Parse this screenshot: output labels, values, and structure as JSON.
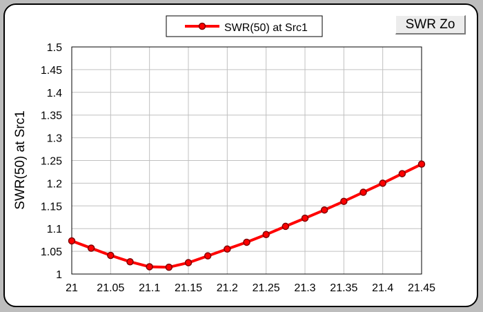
{
  "button": {
    "label": "SWR Zo"
  },
  "colors": {
    "line": "#ff0000",
    "marker_fill": "#ff0000",
    "marker_edge": "#800000",
    "grid": "#c0c0c0"
  },
  "chart_data": {
    "type": "line",
    "title": "",
    "xlabel": "",
    "ylabel": "SWR(50) at Src1",
    "xlim": [
      21,
      21.45
    ],
    "ylim": [
      1,
      1.5
    ],
    "grid": true,
    "legend": "top-center",
    "x_ticks": [
      "21",
      "21.05",
      "21.1",
      "21.15",
      "21.2",
      "21.25",
      "21.3",
      "21.35",
      "21.4",
      "21.45"
    ],
    "y_ticks": [
      "1",
      "1.05",
      "1.1",
      "1.15",
      "1.2",
      "1.25",
      "1.3",
      "1.35",
      "1.4",
      "1.45",
      "1.5"
    ],
    "series": [
      {
        "name": "SWR(50) at Src1",
        "x": [
          21,
          21.025,
          21.05,
          21.075,
          21.1,
          21.125,
          21.15,
          21.175,
          21.2,
          21.225,
          21.25,
          21.275,
          21.3,
          21.325,
          21.35,
          21.375,
          21.4,
          21.425,
          21.45
        ],
        "y": [
          1.073,
          1.057,
          1.041,
          1.027,
          1.016,
          1.015,
          1.025,
          1.04,
          1.055,
          1.07,
          1.087,
          1.105,
          1.123,
          1.141,
          1.16,
          1.18,
          1.2,
          1.221,
          1.242
        ]
      }
    ]
  }
}
